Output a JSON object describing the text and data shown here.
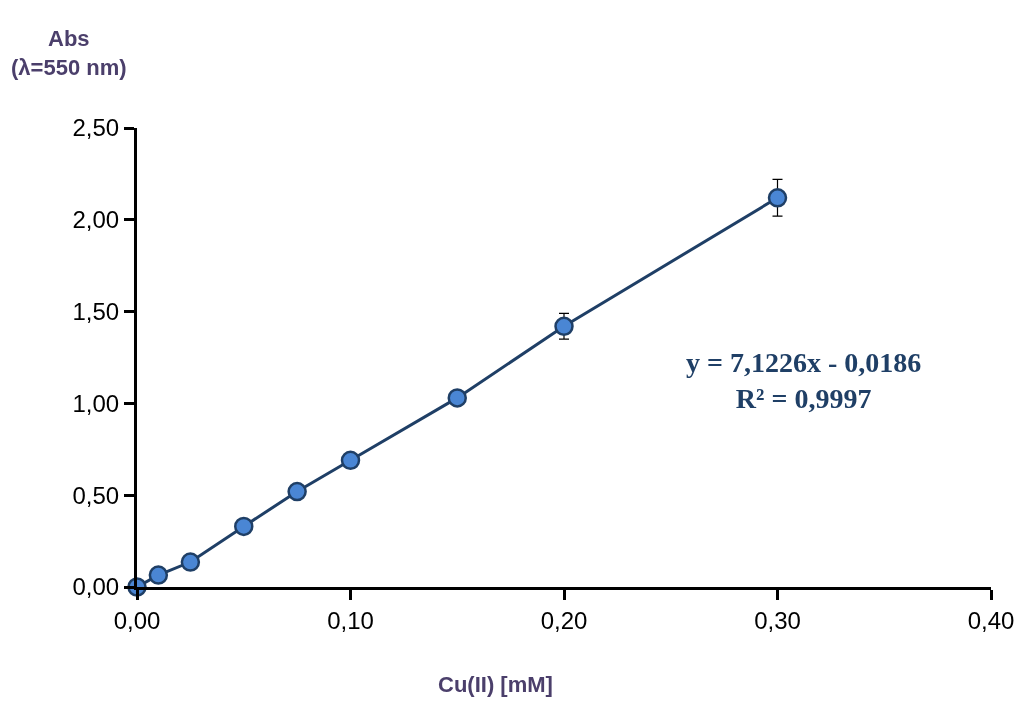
{
  "chart_data": {
    "type": "line",
    "xlabel": "Cu(II) [mM]",
    "ylabel": "Abs\n(λ=550 nm)",
    "x": [
      0,
      0.01,
      0.025,
      0.05,
      0.075,
      0.1,
      0.15,
      0.2,
      0.3
    ],
    "series": [
      {
        "color": "#4a86d4",
        "values": [
          0,
          0.065,
          0.136,
          0.33,
          0.52,
          0.69,
          1.03,
          1.42,
          2.12
        ],
        "errors": [
          null,
          null,
          null,
          null,
          null,
          null,
          null,
          0.07,
          0.1
        ]
      }
    ],
    "marker": "circle",
    "line_style": "solid",
    "xlim": [
      0,
      0.4
    ],
    "ylim": [
      0,
      2.5
    ],
    "xticks": [
      {
        "value": 0,
        "label": "0,00"
      },
      {
        "value": 0.1,
        "label": "0,10"
      },
      {
        "value": 0.2,
        "label": "0,20"
      },
      {
        "value": 0.3,
        "label": "0,30"
      },
      {
        "value": 0.4,
        "label": "0,40"
      }
    ],
    "yticks": [
      {
        "value": 0,
        "label": "0,00"
      },
      {
        "value": 0.5,
        "label": "0,50"
      },
      {
        "value": 1,
        "label": "1,00"
      },
      {
        "value": 1.5,
        "label": "1,50"
      },
      {
        "value": 2,
        "label": "2,00"
      },
      {
        "value": 2.5,
        "label": "2,50"
      }
    ],
    "annotations": [
      "y = 7,1226x - 0,0186\nR² = 0,9997"
    ]
  }
}
